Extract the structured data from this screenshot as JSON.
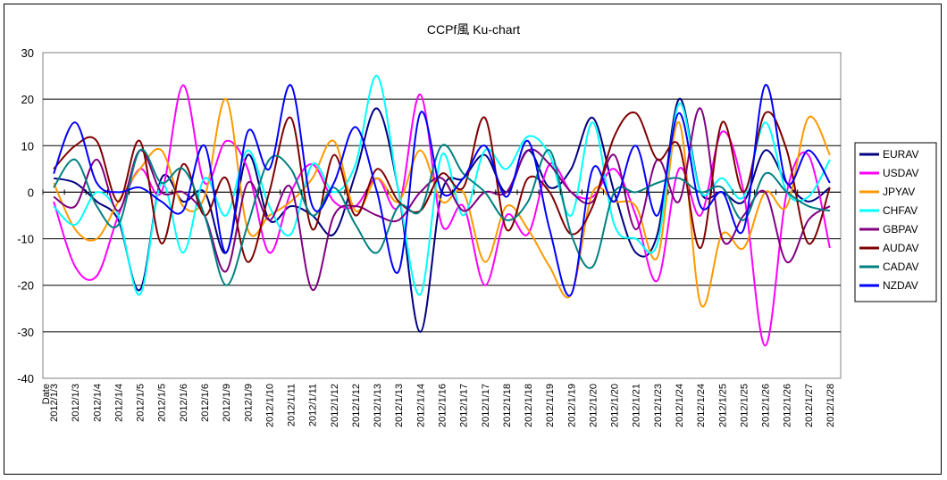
{
  "chart_data": {
    "type": "line",
    "title": "CCPf風 Ku-chart",
    "xlabel": "Date",
    "ylabel": "",
    "ylim": [
      -40,
      30
    ],
    "yticks": [
      -40,
      -30,
      -20,
      -10,
      0,
      10,
      20,
      30
    ],
    "grid": "horizontal",
    "legend_position": "right",
    "categories": [
      "2012/1/3",
      "2012/1/3",
      "2012/1/4",
      "2012/1/4",
      "2012/1/5",
      "2012/1/5",
      "2012/1/6",
      "2012/1/6",
      "2012/1/9",
      "2012/1/9",
      "2012/1/10",
      "2012/1/11",
      "2012/1/11",
      "2012/1/12",
      "2012/1/12",
      "2012/1/13",
      "2012/1/13",
      "2012/1/14",
      "2012/1/16",
      "2012/1/17",
      "2012/1/17",
      "2012/1/18",
      "2012/1/18",
      "2012/1/19",
      "2012/1/19",
      "2012/1/20",
      "2012/1/20",
      "2012/1/21",
      "2012/1/23",
      "2012/1/24",
      "2012/1/24",
      "2012/1/25",
      "2012/1/25",
      "2012/1/26",
      "2012/1/26",
      "2012/1/27",
      "2012/1/28"
    ],
    "series": [
      {
        "name": "EURAV",
        "color": "#000080",
        "values": [
          3,
          2,
          -2,
          -6,
          -21,
          3,
          -2,
          0,
          -13,
          8,
          -6,
          -3,
          -5,
          -9,
          4,
          18,
          0,
          -30,
          0,
          3,
          8,
          0,
          9,
          1,
          5,
          16,
          0,
          -13,
          -9,
          20,
          0,
          0,
          -2,
          9,
          2,
          -2,
          1
        ]
      },
      {
        "name": "USDAV",
        "color": "#FF00FF",
        "values": [
          -2,
          -16,
          -18,
          -5,
          5,
          0,
          23,
          2,
          11,
          5,
          -13,
          0,
          6,
          -2,
          -3,
          3,
          -3,
          21,
          -7,
          -3,
          -20,
          -5,
          -9,
          6,
          0,
          -1,
          5,
          -5,
          -19,
          5,
          -5,
          13,
          0,
          -33,
          0,
          8,
          -12
        ]
      },
      {
        "name": "JPYAV",
        "color": "#FF9900",
        "values": [
          2,
          -8,
          -10,
          -2,
          5,
          9,
          -3,
          -1,
          20,
          -8,
          -5,
          -2,
          3,
          11,
          -4,
          3,
          -2,
          9,
          -2,
          0,
          -15,
          -3,
          -8,
          -16,
          -22,
          0,
          -2,
          -3,
          -14,
          15,
          -24,
          -9,
          -12,
          0,
          -3,
          16,
          8
        ]
      },
      {
        "name": "CHFAV",
        "color": "#00FFFF",
        "values": [
          -3,
          -7,
          0,
          -5,
          -22,
          2,
          -13,
          3,
          -5,
          9,
          -3,
          -9,
          6,
          0,
          6,
          25,
          0,
          -22,
          8,
          -5,
          9,
          5,
          12,
          8,
          -5,
          15,
          -7,
          -10,
          -11,
          19,
          0,
          3,
          -1,
          15,
          0,
          -1,
          7
        ]
      },
      {
        "name": "GBPAV",
        "color": "#800080",
        "values": [
          -1,
          -3,
          7,
          -4,
          9,
          0,
          0,
          -5,
          -17,
          2,
          -6,
          1,
          -21,
          -5,
          -3,
          -5,
          -6,
          0,
          3,
          -4,
          0,
          0,
          9,
          6,
          0,
          -2,
          8,
          -8,
          7,
          -2,
          18,
          -10,
          -5,
          0,
          -15,
          -6,
          -3
        ]
      },
      {
        "name": "AUDAV",
        "color": "#800000",
        "values": [
          5,
          10,
          11,
          -2,
          11,
          -11,
          6,
          -5,
          3,
          -15,
          0,
          16,
          -8,
          8,
          -5,
          5,
          -2,
          -4,
          4,
          1,
          16,
          -8,
          3,
          0,
          -9,
          -3,
          12,
          17,
          7,
          10,
          -12,
          15,
          0,
          17,
          9,
          -11,
          1
        ]
      },
      {
        "name": "CADAV",
        "color": "#008080",
        "values": [
          1,
          7,
          -3,
          -7,
          9,
          2,
          5,
          -5,
          -20,
          -7,
          7,
          5,
          -5,
          1,
          -7,
          -13,
          -3,
          -4,
          10,
          4,
          0,
          -6,
          -2,
          9,
          -9,
          -16,
          0,
          0,
          2,
          3,
          0,
          1,
          -6,
          4,
          0,
          -3,
          -4
        ]
      },
      {
        "name": "NZDAV",
        "color": "#0000FF",
        "values": [
          4,
          15,
          2,
          0,
          1,
          -2,
          -4,
          10,
          -13,
          13,
          5,
          23,
          -3,
          2,
          14,
          0,
          -17,
          17,
          0,
          3,
          10,
          -1,
          11,
          -8,
          -22,
          5,
          -2,
          10,
          -5,
          17,
          -3,
          0,
          -8,
          23,
          2,
          9,
          2
        ]
      }
    ]
  }
}
